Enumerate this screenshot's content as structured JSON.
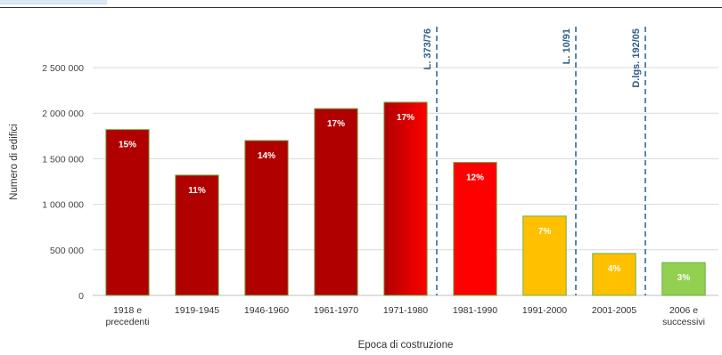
{
  "chart_data": {
    "type": "bar",
    "title": "",
    "xlabel": "Epoca di costruzione",
    "ylabel": "Numero di edifici",
    "ylim": [
      0,
      2500000
    ],
    "yticks": [
      0,
      500000,
      1000000,
      1500000,
      2000000,
      2500000
    ],
    "ytick_labels": [
      "0",
      "500 000",
      "1 000 000",
      "1 500 000",
      "2 000 000",
      "2 500 000"
    ],
    "grid": true,
    "categories": [
      [
        "1918 e",
        "precedenti"
      ],
      [
        "1919-1945"
      ],
      [
        "1946-1960"
      ],
      [
        "1961-1970"
      ],
      [
        "1971-1980"
      ],
      [
        "1981-1990"
      ],
      [
        "1991-2000"
      ],
      [
        "2001-2005"
      ],
      [
        "2006 e",
        "successivi"
      ]
    ],
    "values": [
      1820000,
      1320000,
      1700000,
      2050000,
      2120000,
      1460000,
      870000,
      460000,
      360000
    ],
    "data_labels": [
      "15%",
      "11%",
      "14%",
      "17%",
      "17%",
      "12%",
      "7%",
      "4%",
      "3%"
    ],
    "bar_colors": [
      "#b00000",
      "#b00000",
      "#b00000",
      "#b00000",
      "gradient",
      "#ff0000",
      "#ffc000",
      "#ffc000",
      "#92d050"
    ],
    "bar_gradient": {
      "from": "#b00000",
      "to": "#ff0000"
    },
    "bar_border_color": "#70ad47",
    "reference_lines": [
      {
        "label": "L. 373/76",
        "after_category_index": 4
      },
      {
        "label": "L. 10/91",
        "after_category_index": 6
      },
      {
        "label": "D.lgs. 192/05",
        "after_category_index": 7
      }
    ],
    "reference_line_color": "#2e6a99",
    "gridline_color": "#d9d9d9",
    "axis_color": "#bfbfbf"
  }
}
